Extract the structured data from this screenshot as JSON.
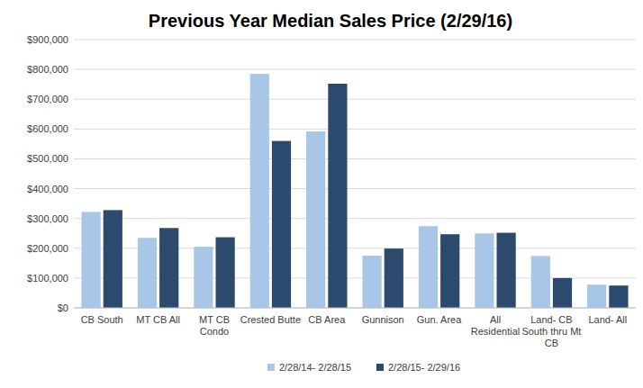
{
  "chart_data": {
    "type": "bar",
    "title": "Previous Year Median Sales Price (2/29/16)",
    "categories": [
      "CB South",
      "MT CB All",
      "MT CB Condo",
      "Crested Butte",
      "CB Area",
      "Gunnison",
      "Gun. Area",
      "All Residential",
      "Land- CB South thru Mt CB",
      "Land- All"
    ],
    "series": [
      {
        "name": "2/28/14- 2/28/15",
        "color": "#a7c6e8",
        "values": [
          322000,
          235000,
          205000,
          785000,
          592000,
          175000,
          274000,
          250000,
          174000,
          78000
        ]
      },
      {
        "name": "2/28/15- 2/29/16",
        "color": "#2c4a6e",
        "values": [
          328000,
          268000,
          237000,
          560000,
          752000,
          199000,
          247000,
          252000,
          100000,
          75000
        ]
      }
    ],
    "ylim": [
      0,
      900000
    ],
    "yticks": [
      {
        "value": 0,
        "label": "$0"
      },
      {
        "value": 100000,
        "label": "$100,000"
      },
      {
        "value": 200000,
        "label": "$200,000"
      },
      {
        "value": 300000,
        "label": "$300,000"
      },
      {
        "value": 400000,
        "label": "$400,000"
      },
      {
        "value": 500000,
        "label": "$500,000"
      },
      {
        "value": 600000,
        "label": "$600,000"
      },
      {
        "value": 700000,
        "label": "$700,000"
      },
      {
        "value": 800000,
        "label": "$800,000"
      },
      {
        "value": 900000,
        "label": "$900,000"
      }
    ],
    "grid": true,
    "legend": "bottom"
  }
}
